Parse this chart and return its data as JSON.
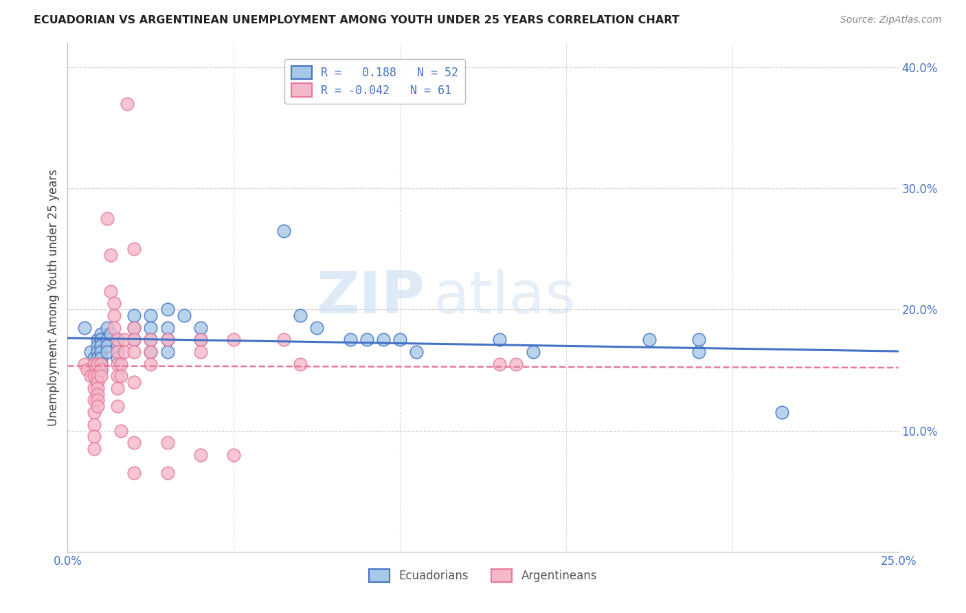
{
  "title": "ECUADORIAN VS ARGENTINEAN UNEMPLOYMENT AMONG YOUTH UNDER 25 YEARS CORRELATION CHART",
  "source": "Source: ZipAtlas.com",
  "ylabel": "Unemployment Among Youth under 25 years",
  "xlim": [
    0.0,
    0.25
  ],
  "ylim": [
    0.0,
    0.42
  ],
  "ecu_color": "#a8c8e8",
  "arg_color": "#f4b8c8",
  "ecu_line_color": "#4472c4",
  "arg_line_color": "#e8789a",
  "watermark_zip": "ZIP",
  "watermark_atlas": "atlas",
  "ecu_scatter": [
    [
      0.005,
      0.185
    ],
    [
      0.007,
      0.165
    ],
    [
      0.008,
      0.16
    ],
    [
      0.008,
      0.155
    ],
    [
      0.009,
      0.175
    ],
    [
      0.009,
      0.17
    ],
    [
      0.009,
      0.165
    ],
    [
      0.009,
      0.16
    ],
    [
      0.01,
      0.18
    ],
    [
      0.01,
      0.175
    ],
    [
      0.01,
      0.17
    ],
    [
      0.01,
      0.165
    ],
    [
      0.01,
      0.16
    ],
    [
      0.01,
      0.155
    ],
    [
      0.01,
      0.15
    ],
    [
      0.012,
      0.185
    ],
    [
      0.012,
      0.175
    ],
    [
      0.012,
      0.17
    ],
    [
      0.012,
      0.165
    ],
    [
      0.013,
      0.18
    ],
    [
      0.015,
      0.175
    ],
    [
      0.015,
      0.17
    ],
    [
      0.015,
      0.165
    ],
    [
      0.015,
      0.16
    ],
    [
      0.02,
      0.195
    ],
    [
      0.02,
      0.185
    ],
    [
      0.02,
      0.175
    ],
    [
      0.025,
      0.195
    ],
    [
      0.025,
      0.185
    ],
    [
      0.025,
      0.175
    ],
    [
      0.025,
      0.165
    ],
    [
      0.03,
      0.2
    ],
    [
      0.03,
      0.185
    ],
    [
      0.03,
      0.175
    ],
    [
      0.03,
      0.165
    ],
    [
      0.035,
      0.195
    ],
    [
      0.04,
      0.185
    ],
    [
      0.04,
      0.175
    ],
    [
      0.065,
      0.265
    ],
    [
      0.07,
      0.195
    ],
    [
      0.075,
      0.185
    ],
    [
      0.085,
      0.175
    ],
    [
      0.09,
      0.175
    ],
    [
      0.095,
      0.175
    ],
    [
      0.1,
      0.175
    ],
    [
      0.105,
      0.165
    ],
    [
      0.13,
      0.175
    ],
    [
      0.14,
      0.165
    ],
    [
      0.175,
      0.175
    ],
    [
      0.19,
      0.175
    ],
    [
      0.19,
      0.165
    ],
    [
      0.215,
      0.115
    ]
  ],
  "arg_scatter": [
    [
      0.005,
      0.155
    ],
    [
      0.006,
      0.15
    ],
    [
      0.007,
      0.145
    ],
    [
      0.008,
      0.155
    ],
    [
      0.008,
      0.145
    ],
    [
      0.008,
      0.135
    ],
    [
      0.008,
      0.125
    ],
    [
      0.008,
      0.115
    ],
    [
      0.008,
      0.105
    ],
    [
      0.008,
      0.095
    ],
    [
      0.008,
      0.085
    ],
    [
      0.009,
      0.155
    ],
    [
      0.009,
      0.145
    ],
    [
      0.009,
      0.14
    ],
    [
      0.009,
      0.135
    ],
    [
      0.009,
      0.13
    ],
    [
      0.009,
      0.125
    ],
    [
      0.009,
      0.12
    ],
    [
      0.01,
      0.155
    ],
    [
      0.01,
      0.15
    ],
    [
      0.01,
      0.145
    ],
    [
      0.012,
      0.275
    ],
    [
      0.013,
      0.245
    ],
    [
      0.013,
      0.215
    ],
    [
      0.014,
      0.205
    ],
    [
      0.014,
      0.195
    ],
    [
      0.014,
      0.185
    ],
    [
      0.015,
      0.175
    ],
    [
      0.015,
      0.165
    ],
    [
      0.015,
      0.155
    ],
    [
      0.015,
      0.145
    ],
    [
      0.015,
      0.135
    ],
    [
      0.015,
      0.12
    ],
    [
      0.016,
      0.155
    ],
    [
      0.016,
      0.145
    ],
    [
      0.016,
      0.1
    ],
    [
      0.017,
      0.175
    ],
    [
      0.017,
      0.165
    ],
    [
      0.018,
      0.37
    ],
    [
      0.02,
      0.25
    ],
    [
      0.02,
      0.185
    ],
    [
      0.02,
      0.175
    ],
    [
      0.02,
      0.165
    ],
    [
      0.02,
      0.14
    ],
    [
      0.02,
      0.09
    ],
    [
      0.02,
      0.065
    ],
    [
      0.025,
      0.175
    ],
    [
      0.025,
      0.165
    ],
    [
      0.025,
      0.155
    ],
    [
      0.03,
      0.175
    ],
    [
      0.03,
      0.09
    ],
    [
      0.03,
      0.065
    ],
    [
      0.04,
      0.175
    ],
    [
      0.04,
      0.165
    ],
    [
      0.04,
      0.08
    ],
    [
      0.05,
      0.175
    ],
    [
      0.05,
      0.08
    ],
    [
      0.065,
      0.175
    ],
    [
      0.07,
      0.155
    ],
    [
      0.13,
      0.155
    ],
    [
      0.135,
      0.155
    ]
  ]
}
